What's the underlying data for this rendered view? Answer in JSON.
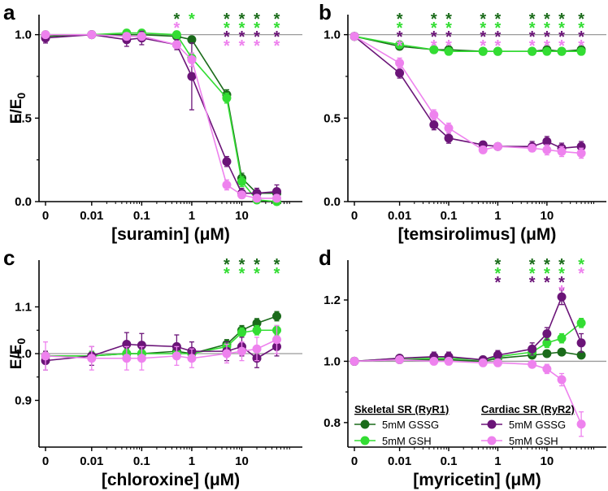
{
  "colors": {
    "skeletal_gssg": "#1a6b1a",
    "skeletal_gsh": "#33dd33",
    "cardiac_gssg": "#6b1478",
    "cardiac_gsh": "#ee82ee",
    "reference": "#9a9a9a",
    "axis": "#000000"
  },
  "legend": {
    "skeletal_title": "Skeletal SR (RyR1)",
    "cardiac_title": "Cardiac SR (RyR2)",
    "skeletal_gssg": "5mM GSSG",
    "skeletal_gsh": "5mM GSH",
    "cardiac_gssg": "5mM GSSG",
    "cardiac_gsh": "5mM GSH"
  },
  "chart_data": [
    {
      "type": "line",
      "panel": "a",
      "title": "",
      "xlabel": "[suramin] (μM)",
      "ylabel": "E/E0",
      "x": [
        0,
        0.01,
        0.05,
        0.1,
        0.5,
        1,
        5,
        10,
        20,
        50
      ],
      "xlim": [
        0,
        80
      ],
      "ylim": [
        0,
        1.12
      ],
      "yticks": [
        0.0,
        0.5,
        1.0
      ],
      "xticks": [
        "0",
        "0.01",
        "0.1",
        "1",
        "10"
      ],
      "reference_line": 1.0,
      "series": [
        {
          "name": "Skeletal SR (RyR1) 5mM GSSG",
          "color_key": "skeletal_gssg",
          "values": [
            0.99,
            1.0,
            1.0,
            1.0,
            0.99,
            0.97,
            0.64,
            0.14,
            0.05,
            0.05
          ],
          "errors": [
            0.02,
            0.02,
            0.02,
            0.02,
            0.02,
            0.02,
            0.03,
            0.03,
            0.02,
            0.02
          ]
        },
        {
          "name": "Skeletal SR (RyR1) 5mM GSH",
          "color_key": "skeletal_gsh",
          "values": [
            1.0,
            1.0,
            1.01,
            1.01,
            1.0,
            0.86,
            0.62,
            0.12,
            0.01,
            0.0
          ],
          "errors": [
            0.02,
            0.02,
            0.02,
            0.02,
            0.02,
            0.03,
            0.03,
            0.03,
            0.02,
            0.02
          ]
        },
        {
          "name": "Cardiac SR (RyR2) 5mM GSSG",
          "color_key": "cardiac_gssg",
          "values": [
            0.98,
            1.0,
            0.97,
            0.98,
            0.94,
            0.75,
            0.24,
            0.05,
            0.05,
            0.06
          ],
          "errors": [
            0.03,
            0.02,
            0.04,
            0.04,
            0.03,
            0.2,
            0.03,
            0.03,
            0.03,
            0.04
          ]
        },
        {
          "name": "Cardiac SR (RyR2) 5mM GSH",
          "color_key": "cardiac_gsh",
          "values": [
            1.0,
            1.0,
            0.99,
            0.99,
            0.94,
            0.85,
            0.1,
            0.04,
            0.02,
            0.02
          ],
          "errors": [
            0.02,
            0.02,
            0.02,
            0.02,
            0.02,
            0.04,
            0.03,
            0.02,
            0.02,
            0.02
          ]
        }
      ],
      "significance": [
        {
          "x": 0.5,
          "stars": [
            "skeletal_gssg",
            "cardiac_gsh"
          ]
        },
        {
          "x": 1,
          "stars": [
            "skeletal_gsh"
          ]
        },
        {
          "x": 5,
          "stars": [
            "skeletal_gssg",
            "skeletal_gsh",
            "cardiac_gssg",
            "cardiac_gsh"
          ]
        },
        {
          "x": 10,
          "stars": [
            "skeletal_gssg",
            "skeletal_gsh",
            "cardiac_gssg",
            "cardiac_gsh"
          ]
        },
        {
          "x": 20,
          "stars": [
            "skeletal_gssg",
            "skeletal_gsh",
            "cardiac_gssg",
            "cardiac_gsh"
          ]
        },
        {
          "x": 50,
          "stars": [
            "skeletal_gssg",
            "skeletal_gsh",
            "cardiac_gssg",
            "cardiac_gsh"
          ]
        }
      ]
    },
    {
      "type": "line",
      "panel": "b",
      "title": "",
      "xlabel": "[temsirolimus] (μM)",
      "ylabel": "",
      "x": [
        0,
        0.01,
        0.05,
        0.1,
        0.5,
        1,
        5,
        10,
        20,
        50
      ],
      "xlim": [
        0,
        80
      ],
      "ylim": [
        0,
        1.12
      ],
      "yticks": [
        0.0,
        0.5,
        1.0
      ],
      "xticks": [
        "0",
        "0.01",
        "0.1",
        "1",
        "10"
      ],
      "reference_line": 1.0,
      "series": [
        {
          "name": "Skeletal SR (RyR1) 5mM GSSG",
          "color_key": "skeletal_gssg",
          "values": [
            0.99,
            0.93,
            0.91,
            0.91,
            0.9,
            0.9,
            0.9,
            0.91,
            0.9,
            0.91
          ],
          "errors": [
            0.01,
            0.01,
            0.01,
            0.01,
            0.01,
            0.01,
            0.01,
            0.01,
            0.01,
            0.01
          ]
        },
        {
          "name": "Skeletal SR (RyR1) 5mM GSH",
          "color_key": "skeletal_gsh",
          "values": [
            0.99,
            0.94,
            0.91,
            0.9,
            0.9,
            0.9,
            0.9,
            0.9,
            0.9,
            0.9
          ],
          "errors": [
            0.01,
            0.01,
            0.01,
            0.01,
            0.01,
            0.01,
            0.01,
            0.01,
            0.01,
            0.01
          ]
        },
        {
          "name": "Cardiac SR (RyR2) 5mM GSSG",
          "color_key": "cardiac_gssg",
          "values": [
            0.99,
            0.77,
            0.46,
            0.38,
            0.34,
            0.33,
            0.33,
            0.36,
            0.32,
            0.33
          ],
          "errors": [
            0.02,
            0.03,
            0.03,
            0.03,
            0.02,
            0.02,
            0.03,
            0.03,
            0.03,
            0.03
          ]
        },
        {
          "name": "Cardiac SR (RyR2) 5mM GSH",
          "color_key": "cardiac_gsh",
          "values": [
            0.99,
            0.83,
            0.52,
            0.44,
            0.31,
            0.33,
            0.32,
            0.31,
            0.3,
            0.29
          ],
          "errors": [
            0.02,
            0.03,
            0.03,
            0.03,
            0.02,
            0.02,
            0.02,
            0.03,
            0.03,
            0.03
          ]
        }
      ],
      "significance": [
        {
          "x": 0.01,
          "stars": [
            "skeletal_gssg",
            "skeletal_gsh",
            "cardiac_gssg",
            "cardiac_gsh"
          ]
        },
        {
          "x": 0.05,
          "stars": [
            "skeletal_gssg",
            "skeletal_gsh",
            "cardiac_gssg",
            "cardiac_gsh"
          ]
        },
        {
          "x": 0.1,
          "stars": [
            "skeletal_gssg",
            "skeletal_gsh",
            "cardiac_gssg",
            "cardiac_gsh"
          ]
        },
        {
          "x": 0.5,
          "stars": [
            "skeletal_gssg",
            "skeletal_gsh",
            "cardiac_gssg",
            "cardiac_gsh"
          ]
        },
        {
          "x": 1,
          "stars": [
            "skeletal_gssg",
            "skeletal_gsh",
            "cardiac_gssg",
            "cardiac_gsh"
          ]
        },
        {
          "x": 5,
          "stars": [
            "skeletal_gssg",
            "skeletal_gsh",
            "cardiac_gssg",
            "cardiac_gsh"
          ]
        },
        {
          "x": 10,
          "stars": [
            "skeletal_gssg",
            "skeletal_gsh",
            "cardiac_gssg",
            "cardiac_gsh"
          ]
        },
        {
          "x": 20,
          "stars": [
            "skeletal_gssg",
            "skeletal_gsh",
            "cardiac_gssg",
            "cardiac_gsh"
          ]
        },
        {
          "x": 50,
          "stars": [
            "skeletal_gssg",
            "skeletal_gsh",
            "cardiac_gssg",
            "cardiac_gsh"
          ]
        }
      ]
    },
    {
      "type": "line",
      "panel": "c",
      "title": "",
      "xlabel": "[chloroxine] (μM)",
      "ylabel": "E/E0",
      "x": [
        0,
        0.01,
        0.05,
        0.1,
        0.5,
        1,
        5,
        10,
        20,
        50
      ],
      "xlim": [
        0,
        80
      ],
      "ylim": [
        0.8,
        1.2
      ],
      "yticks": [
        0.9,
        1.0,
        1.1
      ],
      "xticks": [
        "0",
        "0.01",
        "0.1",
        "1",
        "10"
      ],
      "reference_line": 1.0,
      "series": [
        {
          "name": "Skeletal SR (RyR1) 5mM GSSG",
          "color_key": "skeletal_gssg",
          "values": [
            0.995,
            0.995,
            1.0,
            1.0,
            1.005,
            1.0,
            1.02,
            1.05,
            1.065,
            1.08
          ],
          "errors": [
            0.01,
            0.01,
            0.01,
            0.01,
            0.01,
            0.01,
            0.01,
            0.01,
            0.01,
            0.01
          ]
        },
        {
          "name": "Skeletal SR (RyR1) 5mM GSH",
          "color_key": "skeletal_gsh",
          "values": [
            0.995,
            0.995,
            1.0,
            1.0,
            1.0,
            1.0,
            1.015,
            1.045,
            1.05,
            1.05
          ],
          "errors": [
            0.01,
            0.01,
            0.01,
            0.01,
            0.01,
            0.01,
            0.01,
            0.01,
            0.01,
            0.01
          ]
        },
        {
          "name": "Cardiac SR (RyR2) 5mM GSSG",
          "color_key": "cardiac_gssg",
          "values": [
            0.985,
            0.995,
            1.02,
            1.018,
            1.015,
            1.005,
            1.005,
            1.015,
            0.99,
            1.015
          ],
          "errors": [
            0.02,
            0.02,
            0.025,
            0.025,
            0.025,
            0.02,
            0.02,
            0.02,
            0.02,
            0.02
          ]
        },
        {
          "name": "Cardiac SR (RyR2) 5mM GSH",
          "color_key": "cardiac_gsh",
          "values": [
            0.995,
            0.99,
            0.99,
            0.99,
            0.995,
            0.99,
            1.0,
            1.005,
            1.01,
            1.03
          ],
          "errors": [
            0.03,
            0.025,
            0.025,
            0.025,
            0.02,
            0.02,
            0.02,
            0.02,
            0.025,
            0.03
          ]
        }
      ],
      "significance": [
        {
          "x": 5,
          "stars": [
            "skeletal_gssg",
            "skeletal_gsh"
          ]
        },
        {
          "x": 10,
          "stars": [
            "skeletal_gssg",
            "skeletal_gsh"
          ]
        },
        {
          "x": 20,
          "stars": [
            "skeletal_gssg",
            "skeletal_gsh"
          ]
        },
        {
          "x": 50,
          "stars": [
            "skeletal_gssg",
            "skeletal_gsh"
          ]
        }
      ]
    },
    {
      "type": "line",
      "panel": "d",
      "title": "",
      "xlabel": "[myricetin] (μM)",
      "ylabel": "",
      "x": [
        0,
        0.01,
        0.05,
        0.1,
        0.5,
        1,
        5,
        10,
        20,
        50
      ],
      "xlim": [
        0,
        80
      ],
      "ylim": [
        0.72,
        1.33
      ],
      "yticks": [
        0.8,
        1.0,
        1.2
      ],
      "xticks": [
        "0",
        "0.01",
        "0.1",
        "1",
        "10"
      ],
      "reference_line": 1.0,
      "series": [
        {
          "name": "Skeletal SR (RyR1) 5mM GSSG",
          "color_key": "skeletal_gssg",
          "values": [
            1.0,
            1.005,
            1.005,
            1.005,
            1.0,
            1.01,
            1.02,
            1.025,
            1.03,
            1.02
          ],
          "errors": [
            0.01,
            0.01,
            0.01,
            0.01,
            0.01,
            0.01,
            0.01,
            0.01,
            0.01,
            0.01
          ]
        },
        {
          "name": "Skeletal SR (RyR1) 5mM GSH",
          "color_key": "skeletal_gsh",
          "values": [
            1.0,
            1.01,
            1.01,
            1.01,
            1.005,
            1.015,
            1.03,
            1.06,
            1.075,
            1.125
          ],
          "errors": [
            0.01,
            0.01,
            0.01,
            0.01,
            0.01,
            0.01,
            0.01,
            0.015,
            0.015,
            0.015
          ]
        },
        {
          "name": "Cardiac SR (RyR2) 5mM GSSG",
          "color_key": "cardiac_gssg",
          "values": [
            1.0,
            1.01,
            1.015,
            1.015,
            1.005,
            1.02,
            1.04,
            1.09,
            1.21,
            1.06
          ],
          "errors": [
            0.01,
            0.01,
            0.015,
            0.015,
            0.01,
            0.015,
            0.02,
            0.02,
            0.025,
            0.03
          ]
        },
        {
          "name": "Cardiac SR (RyR2) 5mM GSH",
          "color_key": "cardiac_gsh",
          "values": [
            1.0,
            1.005,
            1.0,
            1.0,
            0.995,
            0.995,
            0.99,
            0.975,
            0.94,
            0.795
          ],
          "errors": [
            0.01,
            0.01,
            0.01,
            0.01,
            0.01,
            0.01,
            0.01,
            0.015,
            0.02,
            0.04
          ]
        }
      ],
      "significance": [
        {
          "x": 1,
          "stars": [
            "skeletal_gssg",
            "skeletal_gsh",
            "cardiac_gssg"
          ]
        },
        {
          "x": 5,
          "stars": [
            "skeletal_gssg",
            "skeletal_gsh",
            "cardiac_gssg"
          ]
        },
        {
          "x": 10,
          "stars": [
            "skeletal_gssg",
            "skeletal_gsh",
            "cardiac_gssg"
          ]
        },
        {
          "x": 20,
          "stars": [
            "skeletal_gssg",
            "skeletal_gsh",
            "cardiac_gssg",
            "cardiac_gsh"
          ]
        },
        {
          "x": 50,
          "stars": [
            "skeletal_gsh",
            "cardiac_gsh"
          ]
        }
      ]
    }
  ]
}
